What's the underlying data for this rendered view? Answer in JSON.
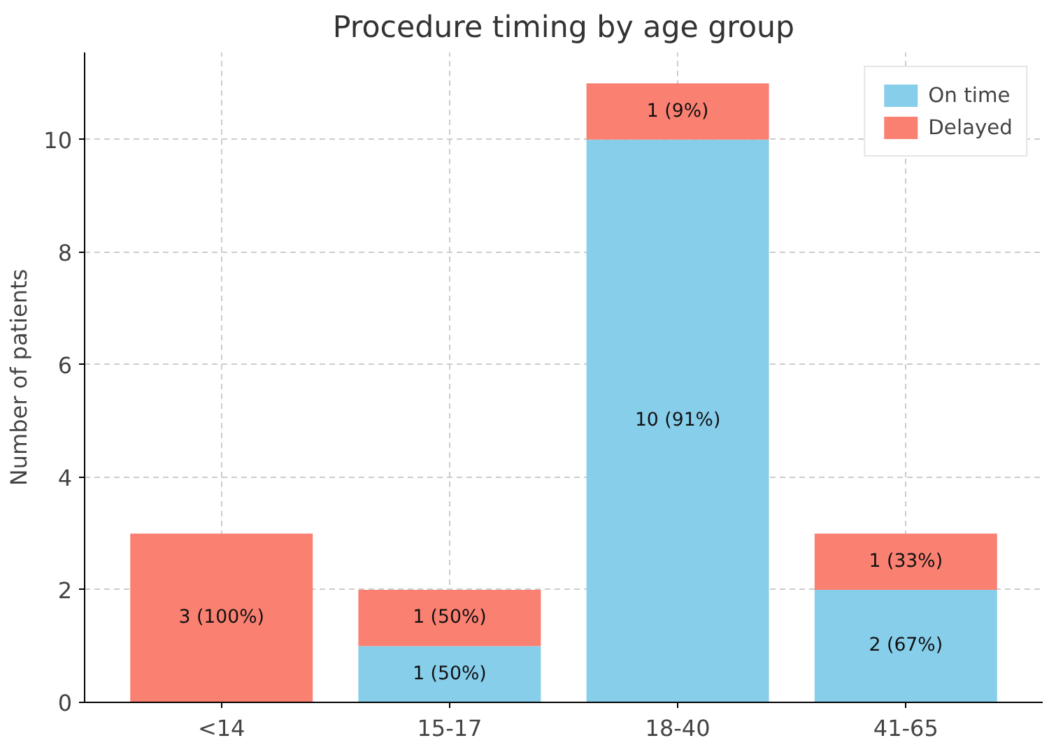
{
  "chart_data": {
    "type": "bar",
    "title": "Procedure timing by age group",
    "ylabel": "Number of patients",
    "categories": [
      "<14",
      "15-17",
      "18-40",
      "41-65"
    ],
    "stacked": true,
    "ylim": [
      0,
      11.55
    ],
    "yticks": [
      0,
      2,
      4,
      6,
      8,
      10
    ],
    "grid": true,
    "legend": "top right",
    "series": [
      {
        "name": "On time",
        "color": "#87ceeb",
        "values": [
          0,
          1,
          10,
          2
        ],
        "value_labels": [
          null,
          "1 (50%)",
          "10 (91%)",
          "2 (67%)"
        ]
      },
      {
        "name": "Delayed",
        "color": "#fa8072",
        "values": [
          3,
          1,
          1,
          1
        ],
        "value_labels": [
          "3 (100%)",
          "1 (50%)",
          "1 (9%)",
          "1 (33%)"
        ]
      }
    ]
  }
}
